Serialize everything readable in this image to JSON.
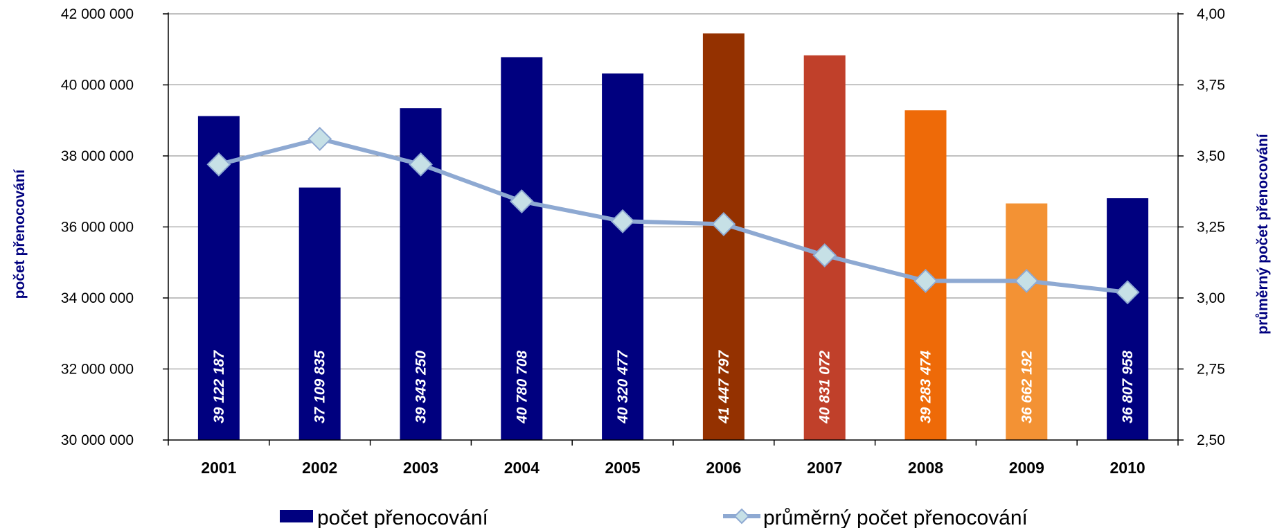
{
  "chart_data": {
    "type": "bar",
    "categories": [
      "2001",
      "2002",
      "2003",
      "2004",
      "2005",
      "2006",
      "2007",
      "2008",
      "2009",
      "2010"
    ],
    "series": [
      {
        "name": "počet přenocování",
        "type": "bar",
        "axis": "left",
        "values": [
          39122187,
          37109835,
          39343250,
          40780708,
          40320477,
          41447797,
          40831072,
          39283474,
          36662192,
          36807958
        ],
        "value_labels": [
          "39 122 187",
          "37 109 835",
          "39 343 250",
          "40 780 708",
          "40 320 477",
          "41 447 797",
          "40 831 072",
          "39 283 474",
          "36 662 192",
          "36 807 958"
        ],
        "colors": [
          "#00007f",
          "#00007f",
          "#00007f",
          "#00007f",
          "#00007f",
          "#943100",
          "#c0402a",
          "#ee6a08",
          "#f39234",
          "#00007f"
        ]
      },
      {
        "name": "průměrný počet přenocování",
        "type": "line",
        "axis": "right",
        "values": [
          3.47,
          3.56,
          3.47,
          3.34,
          3.27,
          3.26,
          3.15,
          3.06,
          3.06,
          3.02
        ],
        "line_color": "#8ea9d2",
        "marker_fill": "#c6e0e6",
        "marker_stroke": "#8ea9d2"
      }
    ],
    "ylabel": "počet přenocování",
    "y2label": "průměrný počet přenocování",
    "ylim": [
      30000000,
      42000000
    ],
    "yticks": [
      30000000,
      32000000,
      34000000,
      36000000,
      38000000,
      40000000,
      42000000
    ],
    "ytick_labels": [
      "30 000 000",
      "32 000 000",
      "34 000 000",
      "36 000 000",
      "38 000 000",
      "40 000 000",
      "42 000 000"
    ],
    "y2lim": [
      2.5,
      4.0
    ],
    "y2ticks": [
      2.5,
      2.75,
      3.0,
      3.25,
      3.5,
      3.75,
      4.0
    ],
    "y2tick_labels": [
      "2,50",
      "2,75",
      "3,00",
      "3,25",
      "3,50",
      "3,75",
      "4,00"
    ],
    "grid": true,
    "legend": "bottom",
    "legend_bar_color": "#00007f"
  }
}
